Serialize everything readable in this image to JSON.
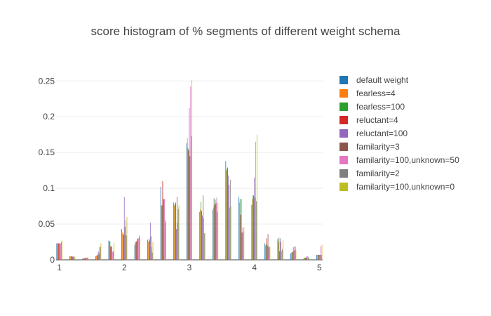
{
  "chart_data": {
    "type": "bar",
    "title": "score histogram of % segments of different weight schema",
    "xlabel": "",
    "ylabel": "",
    "xlim": [
      0.95,
      5.05
    ],
    "ylim": [
      0,
      0.265
    ],
    "x_ticks": [
      1,
      2,
      3,
      4,
      5
    ],
    "y_ticks": [
      0,
      0.05,
      0.1,
      0.15,
      0.2,
      0.25
    ],
    "y_tick_labels": [
      "0",
      "0.05",
      "0.1",
      "0.15",
      "0.2",
      "0.25"
    ],
    "legend_position": "right",
    "grid": true,
    "categories": [
      1.0,
      1.2,
      1.4,
      1.6,
      1.8,
      2.0,
      2.2,
      2.4,
      2.6,
      2.8,
      3.0,
      3.2,
      3.4,
      3.6,
      3.8,
      4.0,
      4.2,
      4.4,
      4.6,
      4.8,
      5.0
    ],
    "series": [
      {
        "name": "default weight",
        "color": "#1f77b4",
        "values": [
          0.023,
          0.005,
          0.002,
          0.005,
          0.027,
          0.043,
          0.021,
          0.028,
          0.102,
          0.08,
          0.163,
          0.067,
          0.07,
          0.138,
          0.088,
          0.077,
          0.023,
          0.029,
          0.009,
          0.002,
          0.007
        ]
      },
      {
        "name": "fearless=4",
        "color": "#ff7f0e",
        "values": [
          0.023,
          0.005,
          0.002,
          0.006,
          0.026,
          0.038,
          0.025,
          0.025,
          0.076,
          0.076,
          0.17,
          0.07,
          0.073,
          0.125,
          0.08,
          0.085,
          0.02,
          0.025,
          0.01,
          0.003,
          0.007
        ]
      },
      {
        "name": "fearless=100",
        "color": "#2ca02c",
        "values": [
          0.023,
          0.005,
          0.002,
          0.006,
          0.026,
          0.035,
          0.025,
          0.03,
          0.076,
          0.078,
          0.156,
          0.081,
          0.086,
          0.127,
          0.085,
          0.09,
          0.022,
          0.031,
          0.011,
          0.003,
          0.007
        ]
      },
      {
        "name": "reluctant=4",
        "color": "#d62728",
        "values": [
          0.023,
          0.005,
          0.002,
          0.007,
          0.019,
          0.036,
          0.026,
          0.027,
          0.11,
          0.08,
          0.153,
          0.068,
          0.077,
          0.129,
          0.063,
          0.09,
          0.03,
          0.012,
          0.011,
          0.003,
          0.007
        ]
      },
      {
        "name": "reluctant=100",
        "color": "#9467bd",
        "values": [
          0.023,
          0.004,
          0.003,
          0.012,
          0.018,
          0.088,
          0.029,
          0.052,
          0.085,
          0.043,
          0.212,
          0.062,
          0.084,
          0.118,
          0.085,
          0.115,
          0.02,
          0.03,
          0.018,
          0.005,
          0.007
        ]
      },
      {
        "name": "familarity=3",
        "color": "#8c564b",
        "values": [
          0.023,
          0.005,
          0.003,
          0.009,
          0.019,
          0.046,
          0.03,
          0.033,
          0.085,
          0.088,
          0.145,
          0.09,
          0.079,
          0.105,
          0.038,
          0.087,
          0.036,
          0.025,
          0.013,
          0.003,
          0.007
        ]
      },
      {
        "name": "familarity=100,unknown=50",
        "color": "#e377c2",
        "values": [
          0.023,
          0.004,
          0.003,
          0.018,
          0.011,
          0.055,
          0.03,
          0.018,
          0.085,
          0.052,
          0.242,
          0.058,
          0.087,
          0.073,
          0.045,
          0.165,
          0.018,
          0.012,
          0.018,
          0.005,
          0.019
        ]
      },
      {
        "name": "familarity=2",
        "color": "#7f7f7f",
        "values": [
          0.025,
          0.005,
          0.003,
          0.018,
          0.012,
          0.034,
          0.034,
          0.01,
          0.055,
          0.071,
          0.173,
          0.037,
          0.067,
          0.112,
          0.039,
          0.082,
          0.018,
          0.015,
          0.019,
          0.004,
          0.007
        ]
      },
      {
        "name": "familarity=100,unknown=0",
        "color": "#bcbd22",
        "values": [
          0.027,
          0.003,
          0.004,
          0.023,
          0.024,
          0.06,
          0.031,
          0.025,
          0.052,
          0.076,
          0.251,
          0.038,
          0.08,
          0.075,
          0.046,
          0.175,
          0.019,
          0.027,
          0.014,
          0.003,
          0.021
        ]
      }
    ]
  }
}
